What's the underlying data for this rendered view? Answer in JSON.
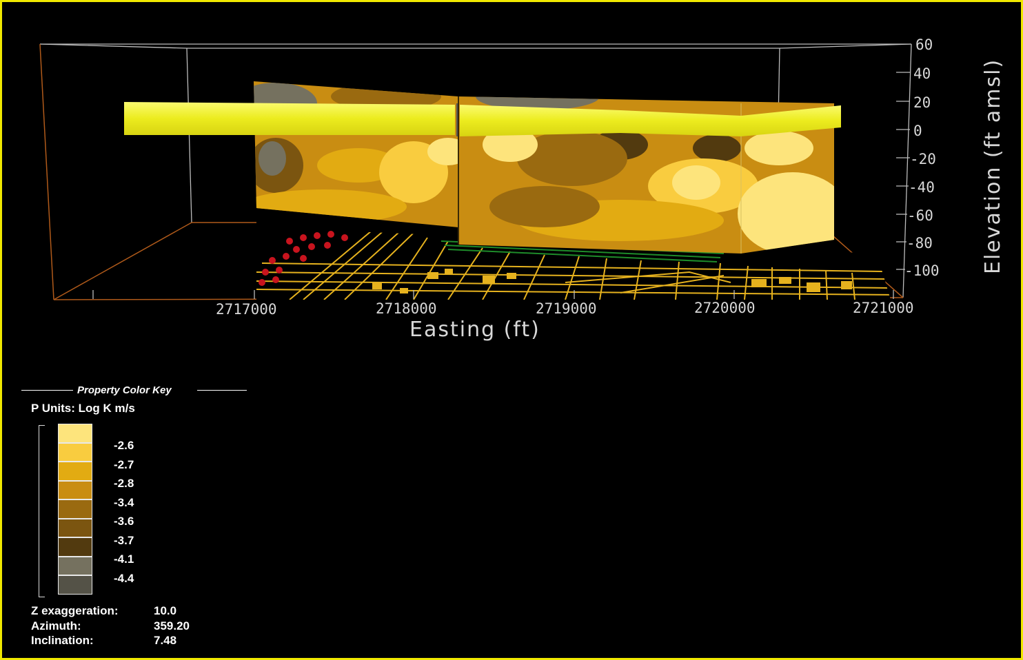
{
  "chart_data": {
    "type": "3d-fence-diagram",
    "xlabel": "Easting (ft)",
    "ylabel": "Elevation (ft amsl)",
    "x_ticks": [
      "2717000",
      "2718000",
      "2719000",
      "2720000",
      "2721000"
    ],
    "y_ticks": [
      "60",
      "40",
      "20",
      "0",
      "-20",
      "-40",
      "-60",
      "-80",
      "-100"
    ],
    "xlim": [
      2716000,
      2721000
    ],
    "ylim": [
      -100,
      60
    ]
  },
  "legend": {
    "title": "Property Color Key",
    "units": "P Units:  Log K m/s",
    "entries": [
      {
        "value": "-2.6",
        "color": "#fde47c"
      },
      {
        "value": "-2.7",
        "color": "#f9cc3f"
      },
      {
        "value": "-2.8",
        "color": "#e2ab12"
      },
      {
        "value": "-3.4",
        "color": "#c98d12"
      },
      {
        "value": "-3.6",
        "color": "#9a6a10"
      },
      {
        "value": "-3.7",
        "color": "#7b5510"
      },
      {
        "value": "-4.1",
        "color": "#523a0f"
      },
      {
        "value": "-4.4",
        "color": "#75715f"
      },
      {
        "value": "",
        "color": "#545247"
      }
    ]
  },
  "view": {
    "z_exaggeration_label": "Z  exaggeration:",
    "z_exaggeration": "10.0",
    "azimuth_label": "Azimuth:",
    "azimuth": "359.20",
    "inclination_label": "Inclination:",
    "inclination": "7.48"
  },
  "colors": {
    "frame": "#f0e800",
    "background": "#000000",
    "surface_band": "#f2f032",
    "map_lines": "#e6b21e",
    "map_green": "#1e8c2a",
    "map_red": "#c8141e"
  }
}
